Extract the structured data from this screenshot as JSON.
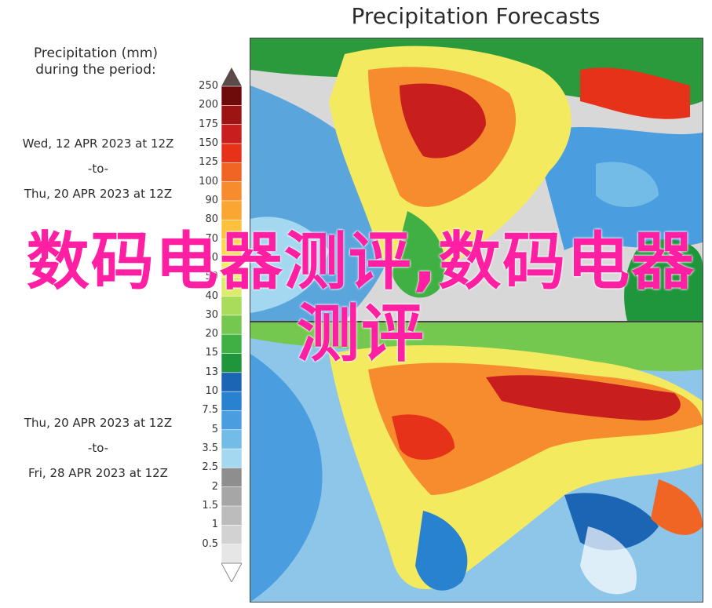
{
  "title": "Precipitation Forecasts",
  "legend": {
    "title_line1": "Precipitation (mm)",
    "title_line2": "during the period:",
    "ticks": [
      "250",
      "200",
      "175",
      "150",
      "125",
      "100",
      "90",
      "80",
      "70",
      "60",
      "50",
      "40",
      "30",
      "20",
      "15",
      "13",
      "10",
      "7.5",
      "5",
      "3.5",
      "2.5",
      "2",
      "1.5",
      "1",
      "0.5"
    ],
    "colors": [
      "#6e0c0c",
      "#9c1414",
      "#c81e1e",
      "#e63219",
      "#f06424",
      "#f78c2e",
      "#faa632",
      "#fdc03a",
      "#fcd84c",
      "#f4ea60",
      "#dcec6a",
      "#a8dc5a",
      "#74c850",
      "#40b044",
      "#20963c",
      "#1c64b4",
      "#2882d0",
      "#4a9ee0",
      "#74bce8",
      "#a4d8f0",
      "#8e8e8e",
      "#a6a6a6",
      "#bcbcbc",
      "#d2d2d2",
      "#e6e6e6"
    ]
  },
  "period1": {
    "start": "Wed, 12 APR 2023 at 12Z",
    "sep": "-to-",
    "end": "Thu, 20 APR 2023 at 12Z"
  },
  "period2": {
    "start": "Thu, 20 APR 2023 at 12Z",
    "sep": "-to-",
    "end": "Fri, 28 APR 2023 at 12Z"
  },
  "watermark": "数码电器测评,数码电器测评"
}
